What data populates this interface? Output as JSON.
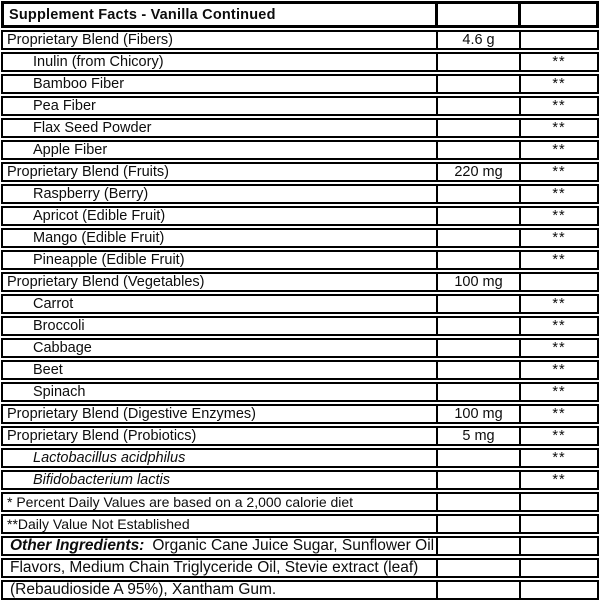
{
  "title": "Supplement Facts - Vanilla Continued",
  "table": {
    "header": {
      "amount_column": "",
      "dv_column": ""
    },
    "rows": [
      {
        "name": "Proprietary Blend (Fibers)",
        "amount": "4.6 g",
        "dv": "",
        "style": "blend"
      },
      {
        "name": "Inulin (from Chicory)",
        "amount": "",
        "dv": "**",
        "style": "sub"
      },
      {
        "name": "Bamboo Fiber",
        "amount": "",
        "dv": "**",
        "style": "sub"
      },
      {
        "name": "Pea Fiber",
        "amount": "",
        "dv": "**",
        "style": "sub"
      },
      {
        "name": "Flax Seed Powder",
        "amount": "",
        "dv": "**",
        "style": "sub"
      },
      {
        "name": "Apple Fiber",
        "amount": "",
        "dv": "**",
        "style": "sub"
      },
      {
        "name": "Proprietary Blend (Fruits)",
        "amount": "220 mg",
        "dv": "**",
        "style": "blend"
      },
      {
        "name": "Raspberry (Berry)",
        "amount": "",
        "dv": "**",
        "style": "sub"
      },
      {
        "name": "Apricot (Edible Fruit)",
        "amount": "",
        "dv": "**",
        "style": "sub"
      },
      {
        "name": "Mango (Edible Fruit)",
        "amount": "",
        "dv": "**",
        "style": "sub"
      },
      {
        "name": "Pineapple (Edible Fruit)",
        "amount": "",
        "dv": "**",
        "style": "sub"
      },
      {
        "name": "Proprietary Blend (Vegetables)",
        "amount": "100 mg",
        "dv": "",
        "style": "blend"
      },
      {
        "name": "Carrot",
        "amount": "",
        "dv": "**",
        "style": "sub"
      },
      {
        "name": "Broccoli",
        "amount": "",
        "dv": "**",
        "style": "sub"
      },
      {
        "name": "Cabbage",
        "amount": "",
        "dv": "**",
        "style": "sub"
      },
      {
        "name": "Beet",
        "amount": "",
        "dv": "**",
        "style": "sub"
      },
      {
        "name": "Spinach",
        "amount": "",
        "dv": "**",
        "style": "sub"
      },
      {
        "name": "Proprietary Blend (Digestive Enzymes)",
        "amount": "100 mg",
        "dv": "**",
        "style": "blend"
      },
      {
        "name": "Proprietary Blend (Probiotics)",
        "amount": "5 mg",
        "dv": "**",
        "style": "blend"
      },
      {
        "name": "Lactobacillus acidphilus",
        "amount": "",
        "dv": "**",
        "style": "sub-italic"
      },
      {
        "name": "Bifidobacterium lactis",
        "amount": "",
        "dv": "**",
        "style": "sub-italic"
      },
      {
        "name": "* Percent Daily Values are based on a 2,000 calorie diet",
        "amount": "",
        "dv": "",
        "style": "note"
      },
      {
        "name": "**Daily Value Not Established",
        "amount": "",
        "dv": "",
        "style": "note"
      },
      {
        "prefix": "Other Ingredients:",
        "name": "Organic Cane Juice Sugar, Sunflower Oil",
        "amount": "",
        "dv": "",
        "style": "oi"
      },
      {
        "name": "Flavors, Medium Chain Triglyceride Oil, Stevie extract (leaf)",
        "amount": "",
        "dv": "",
        "style": "oi"
      },
      {
        "name": "(Rebaudioside A 95%), Xantham Gum.",
        "amount": "",
        "dv": "",
        "style": "oi"
      }
    ]
  },
  "colors": {
    "border": "#000000",
    "text": "#0d0d0d",
    "background": "#ffffff"
  }
}
